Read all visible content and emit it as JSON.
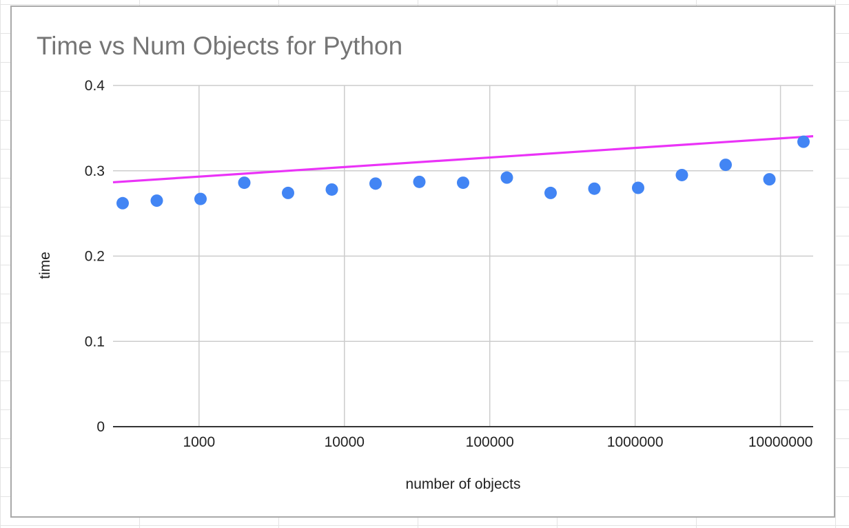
{
  "chart_data": {
    "type": "scatter",
    "title": "Time vs Num Objects for Python",
    "xlabel": "number of objects",
    "ylabel": "time",
    "x_scale": "log",
    "xlim": [
      256,
      16777216
    ],
    "ylim": [
      0,
      0.4
    ],
    "x_ticks": [
      {
        "value": 1000,
        "label": "1000"
      },
      {
        "value": 10000,
        "label": "10000"
      },
      {
        "value": 100000,
        "label": "100000"
      },
      {
        "value": 1000000,
        "label": "1000000"
      },
      {
        "value": 10000000,
        "label": "10000000"
      }
    ],
    "y_ticks": [
      {
        "value": 0,
        "label": "0"
      },
      {
        "value": 0.1,
        "label": "0.1"
      },
      {
        "value": 0.2,
        "label": "0.2"
      },
      {
        "value": 0.3,
        "label": "0.3"
      },
      {
        "value": 0.4,
        "label": "0.4"
      }
    ],
    "grid": true,
    "legend": "none",
    "series": [
      {
        "color": "#4285f4",
        "points": [
          {
            "x": 256,
            "y": 0.262
          },
          {
            "x": 512,
            "y": 0.265
          },
          {
            "x": 1024,
            "y": 0.267
          },
          {
            "x": 2048,
            "y": 0.286
          },
          {
            "x": 4096,
            "y": 0.274
          },
          {
            "x": 8192,
            "y": 0.278
          },
          {
            "x": 16384,
            "y": 0.285
          },
          {
            "x": 32768,
            "y": 0.287
          },
          {
            "x": 65536,
            "y": 0.286
          },
          {
            "x": 131072,
            "y": 0.292
          },
          {
            "x": 262144,
            "y": 0.274
          },
          {
            "x": 524288,
            "y": 0.279
          },
          {
            "x": 1048576,
            "y": 0.28
          },
          {
            "x": 2097152,
            "y": 0.295
          },
          {
            "x": 4194304,
            "y": 0.307
          },
          {
            "x": 8388608,
            "y": 0.29
          },
          {
            "x": 16777216,
            "y": 0.334
          }
        ]
      }
    ],
    "trendline": {
      "color": "#ea33f7",
      "type": "logarithmic",
      "points": [
        {
          "x": 256,
          "y": 0.2865
        },
        {
          "x": 16777216,
          "y": 0.3405
        }
      ]
    }
  }
}
